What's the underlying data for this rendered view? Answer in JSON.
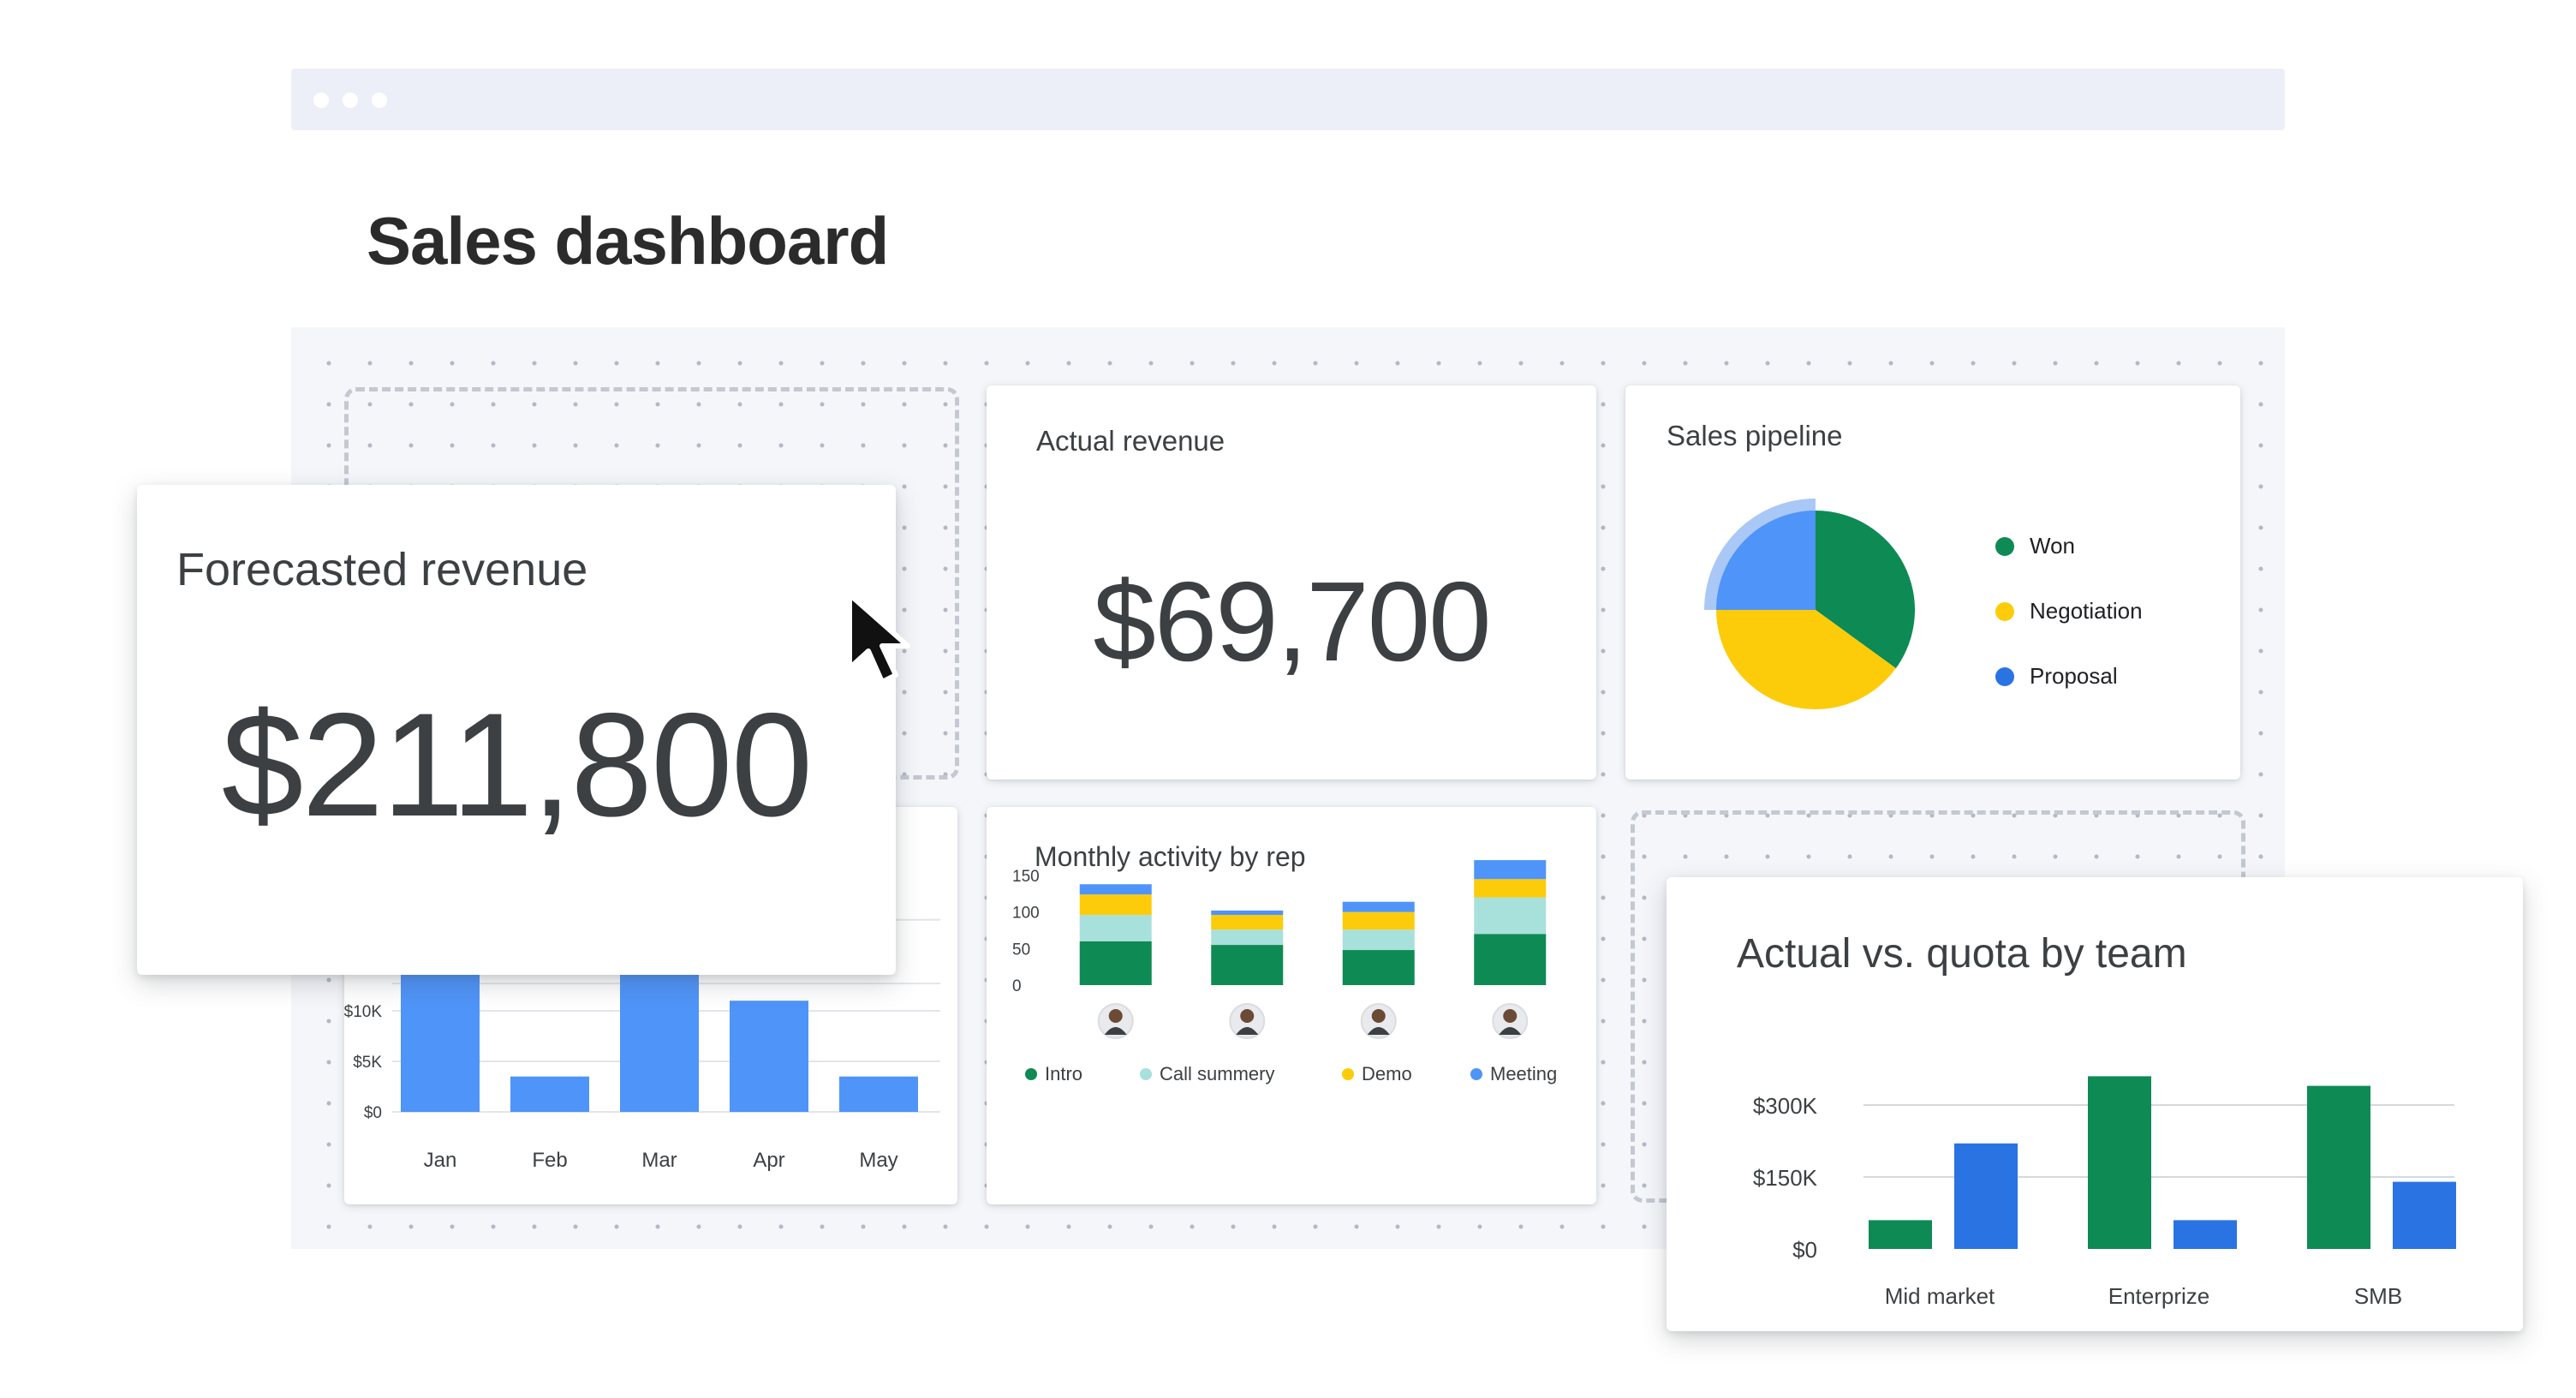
{
  "page": {
    "title": "Sales dashboard"
  },
  "cards": {
    "forecasted": {
      "title": "Forecasted revenue",
      "value": "$211,800"
    },
    "actual": {
      "title": "Actual revenue",
      "value": "$69,700"
    },
    "pipeline": {
      "title": "Sales pipeline"
    },
    "activity": {
      "title": "Monthly activity by rep"
    },
    "quota": {
      "title": "Actual vs. quota by team"
    }
  },
  "colors": {
    "green": "#0e8a55",
    "yellow": "#fccc0a",
    "blue": "#4f94f8",
    "teal": "#a8e0dc",
    "darkblue": "#2a73e3",
    "lightblue_ring": "#a9c8f6"
  },
  "icons": {
    "cursor": "mouse-pointer-icon"
  },
  "chart_data": [
    {
      "id": "revenue_by_month",
      "type": "bar",
      "categories": [
        "Jan",
        "Feb",
        "Mar",
        "Apr",
        "May"
      ],
      "values": [
        20000,
        3500,
        20000,
        11000,
        3500
      ],
      "ytick_labels": [
        "$0",
        "$5K",
        "$10K"
      ],
      "ytick_values": [
        0,
        5000,
        10000
      ],
      "color": "#4f94f8"
    },
    {
      "id": "sales_pipeline",
      "type": "pie",
      "slices": [
        {
          "label": "Won",
          "value": 35,
          "color": "#0e8a55"
        },
        {
          "label": "Negotiation",
          "value": 40,
          "color": "#fccc0a"
        },
        {
          "label": "Proposal",
          "value": 25,
          "color": "#4f94f8"
        }
      ],
      "highlighted": "Proposal"
    },
    {
      "id": "monthly_activity_by_rep",
      "type": "bar",
      "stacked": true,
      "categories": [
        "Rep 1",
        "Rep 2",
        "Rep 3",
        "Rep 4"
      ],
      "ytick_labels": [
        "0",
        "50",
        "100",
        "150"
      ],
      "ytick_values": [
        0,
        50,
        100,
        150
      ],
      "series": [
        {
          "name": "Intro",
          "values": [
            60,
            55,
            48,
            70
          ],
          "color": "#0e8a55"
        },
        {
          "name": "Call summery",
          "values": [
            36,
            21,
            28,
            50
          ],
          "color": "#a8e0dc"
        },
        {
          "name": "Demo",
          "values": [
            28,
            20,
            24,
            25
          ],
          "color": "#fccc0a"
        },
        {
          "name": "Meeting",
          "values": [
            14,
            6,
            14,
            26
          ],
          "color": "#4f94f8"
        }
      ]
    },
    {
      "id": "actual_vs_quota_by_team",
      "type": "bar",
      "categories": [
        "Mid market",
        "Enterprize",
        "SMB"
      ],
      "ytick_labels": [
        "$0",
        "$150K",
        "$300K"
      ],
      "ytick_values": [
        0,
        150000,
        300000
      ],
      "series": [
        {
          "values": [
            60000,
            360000,
            340000
          ],
          "color": "#0e8a55"
        },
        {
          "values": [
            220000,
            60000,
            140000
          ],
          "color": "#2a73e3"
        }
      ]
    }
  ]
}
